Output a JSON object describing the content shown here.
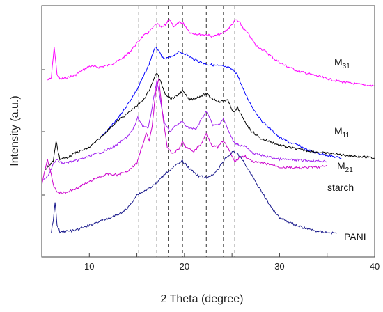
{
  "chart_data": {
    "type": "line",
    "xlabel": "2 Theta (degree)",
    "ylabel": "Intensity (a.u.)",
    "xlim": [
      5,
      40
    ],
    "xticks": [
      10,
      20,
      30,
      40
    ],
    "y_ticks_unlabeled": true,
    "grid": false,
    "reference_lines_2theta": [
      15.2,
      17.1,
      18.3,
      19.8,
      22.3,
      24.1,
      25.3
    ],
    "series": [
      {
        "name": "M31",
        "label_main": "M",
        "label_sub": "31",
        "color": "#ff00ff",
        "x": [
          5.6,
          6.0,
          6.3,
          6.6,
          6.9,
          7.5,
          8.5,
          10,
          11,
          12,
          13,
          14,
          15,
          15.6,
          16.2,
          17.1,
          17.6,
          18.0,
          18.4,
          18.9,
          19.5,
          19.9,
          20.6,
          21.5,
          22.3,
          23.0,
          24.0,
          24.8,
          25.4,
          25.8,
          26.3,
          26.6,
          26.9,
          27.5,
          28.5,
          29.5,
          30.5,
          32,
          34,
          36,
          38,
          40
        ],
        "y": [
          16.2,
          16.4,
          19.6,
          16.8,
          16.3,
          16.4,
          16.7,
          17.6,
          17.5,
          17.7,
          18.1,
          18.8,
          19.9,
          20.6,
          21.0,
          21.9,
          21.5,
          21.8,
          22.4,
          21.5,
          22.1,
          21.9,
          21.0,
          20.8,
          20.8,
          20.6,
          20.9,
          21.6,
          22.3,
          22.0,
          21.3,
          21.0,
          20.6,
          19.7,
          19.1,
          18.3,
          17.7,
          17.1,
          16.6,
          16.1,
          15.8,
          15.6
        ]
      },
      {
        "name": "M11 (blue)",
        "label_main": "",
        "label_sub": "",
        "color": "#0000ff",
        "x": [
          11,
          12,
          13,
          14,
          15,
          15.6,
          16.2,
          16.6,
          17.0,
          17.3,
          17.8,
          18.5,
          19.3,
          20.0,
          20.8,
          21.5,
          22.3,
          23.2,
          24.0,
          24.8,
          25.5,
          26.2,
          27,
          28,
          29,
          30,
          31,
          32,
          33,
          34,
          35,
          36.5
        ],
        "y": [
          10.2,
          11.2,
          12.3,
          13.7,
          15.2,
          16.4,
          17.6,
          18.7,
          19.6,
          19.1,
          18.3,
          18.5,
          19.0,
          18.9,
          18.4,
          18.1,
          17.8,
          17.7,
          17.6,
          17.4,
          16.9,
          15.2,
          13.7,
          12.2,
          11.3,
          10.4,
          9.9,
          9.6,
          9.1,
          8.8,
          8.6,
          8.3
        ]
      },
      {
        "name": "M11",
        "label_main": "M",
        "label_sub": "11",
        "color": "#000000",
        "x": [
          5.4,
          5.8,
          6.2,
          6.5,
          6.9,
          7.5,
          8.5,
          10,
          11,
          12,
          13,
          14,
          15,
          15.6,
          16.2,
          16.8,
          17.1,
          17.5,
          18.0,
          18.6,
          19.2,
          19.8,
          20.5,
          21.2,
          22.3,
          23.0,
          23.7,
          24.5,
          25.2,
          25.6,
          26.2,
          27,
          28,
          29,
          30,
          32,
          34,
          36,
          38,
          40
        ],
        "y": [
          7.2,
          7.6,
          8.0,
          10.0,
          8.2,
          8.3,
          8.8,
          9.4,
          10.2,
          11.2,
          12.1,
          12.8,
          13.6,
          14.1,
          15.0,
          16.3,
          17.0,
          16.0,
          14.8,
          14.3,
          14.6,
          15.1,
          14.2,
          14.4,
          14.8,
          14.3,
          14.0,
          14.2,
          12.9,
          13.4,
          12.2,
          11.1,
          10.3,
          10.0,
          9.6,
          9.2,
          8.9,
          8.7,
          8.5,
          8.3
        ]
      },
      {
        "name": "M21",
        "label_main": "M",
        "label_sub": "21",
        "color": "#a020f0",
        "x": [
          5.2,
          5.6,
          6.0,
          6.3,
          6.6,
          7.2,
          8.5,
          10,
          11,
          12,
          13,
          14,
          14.6,
          15.1,
          15.6,
          16.2,
          16.7,
          17.1,
          17.5,
          17.9,
          18.5,
          19.1,
          19.8,
          20.4,
          21.2,
          22.3,
          23.0,
          23.6,
          24.1,
          24.7,
          25.2,
          25.8,
          26.4,
          27,
          28,
          29,
          30,
          32,
          34,
          35
        ],
        "y": [
          6.2,
          6.5,
          7.2,
          7.9,
          8.1,
          7.8,
          8.0,
          8.5,
          8.8,
          9.2,
          9.7,
          10.5,
          11.2,
          12.4,
          11.6,
          11.3,
          14.0,
          16.2,
          14.0,
          11.8,
          11.0,
          11.6,
          12.0,
          11.4,
          11.2,
          13.1,
          11.6,
          11.7,
          12.3,
          10.9,
          9.9,
          9.6,
          9.5,
          8.9,
          8.6,
          8.4,
          8.2,
          8.1,
          8.0,
          8.0
        ]
      },
      {
        "name": "starch",
        "label_main": "starch",
        "label_sub": "",
        "color": "#cc00cc",
        "x": [
          5.0,
          5.3,
          5.6,
          5.9,
          6.2,
          6.7,
          7.5,
          8.5,
          10,
          11,
          12,
          13,
          14,
          15,
          15.5,
          16.0,
          16.3,
          16.6,
          17.0,
          17.3,
          17.7,
          18.2,
          18.8,
          19.4,
          19.8,
          20.3,
          21,
          21.8,
          22.3,
          22.9,
          23.5,
          24.1,
          24.8,
          25.3,
          25.8,
          26.4,
          27,
          28,
          29,
          30,
          32,
          34,
          35
        ],
        "y": [
          5.6,
          7.0,
          8.2,
          7.0,
          5.6,
          4.8,
          4.8,
          5.2,
          5.9,
          6.4,
          6.7,
          6.6,
          7.0,
          7.8,
          9.4,
          10.8,
          10.0,
          11.5,
          15.2,
          16.4,
          12.8,
          9.3,
          8.8,
          9.2,
          9.9,
          9.3,
          9.0,
          9.8,
          10.8,
          9.6,
          9.4,
          10.1,
          8.9,
          7.9,
          8.4,
          8.5,
          8.0,
          7.8,
          7.7,
          7.4,
          7.3,
          7.4,
          7.5
        ]
      },
      {
        "name": "PANI",
        "label_main": "PANI",
        "label_sub": "",
        "color": "#1a1a8c",
        "x": [
          6.0,
          6.2,
          6.4,
          6.6,
          6.9,
          7.5,
          8.5,
          10,
          11,
          12,
          13,
          14,
          15,
          16,
          17,
          18,
          19,
          19.8,
          20.5,
          21.5,
          22.5,
          23.5,
          24.3,
          25.2,
          26.0,
          27,
          28,
          29,
          30,
          32,
          34,
          36
        ],
        "y": [
          0.8,
          2.0,
          3.8,
          1.6,
          0.8,
          0.9,
          1.0,
          1.5,
          1.9,
          2.2,
          2.6,
          3.2,
          4.6,
          5.1,
          5.7,
          6.8,
          7.5,
          8.0,
          7.3,
          6.5,
          6.3,
          7.1,
          8.3,
          9.0,
          8.3,
          6.7,
          5.1,
          3.5,
          2.3,
          1.4,
          0.9,
          0.7
        ]
      }
    ]
  }
}
